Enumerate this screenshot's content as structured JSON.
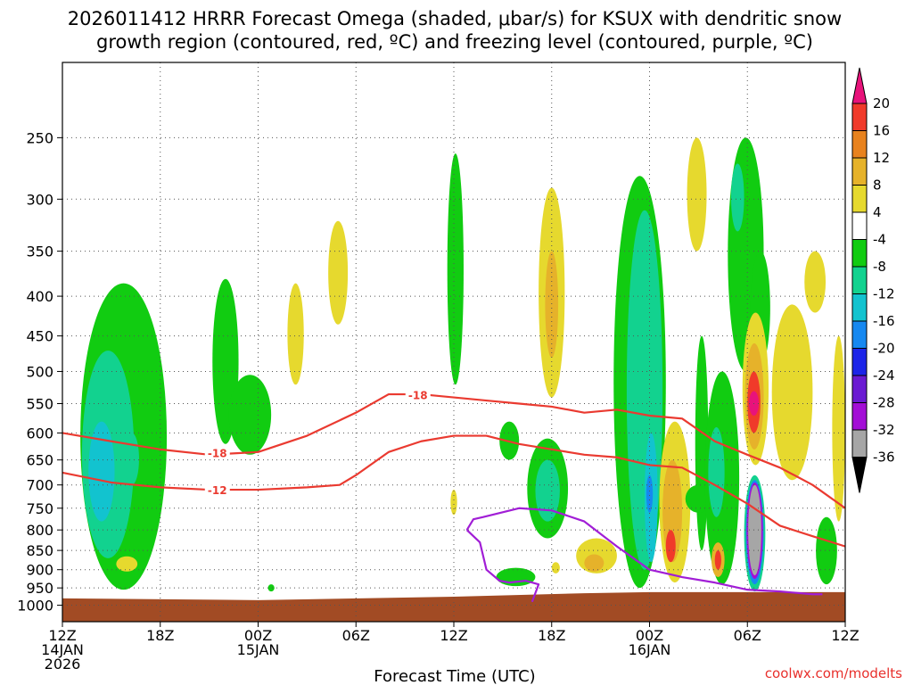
{
  "title_line1": "2026011412 HRRR Forecast Omega (shaded, μbar/s) for KSUX with dendritic snow",
  "title_line2": "growth region (contoured, red, ºC) and freezing level (contoured, purple, ºC)",
  "credit": "coolwx.com/modelts",
  "chart_data": {
    "type": "heatmap",
    "title": "2026011412 HRRR Forecast Omega (shaded, μbar/s) for KSUX with dendritic snow growth region (contoured, red, ºC) and freezing level (contoured, purple, ºC)",
    "xlabel": "Forecast Time (UTC)",
    "ylabel": "",
    "y_log_pressure": true,
    "ylim": [
      1050,
      200
    ],
    "x_hours_range": [
      0,
      48
    ],
    "grid": true,
    "x_ticks": [
      {
        "h": 0,
        "l1": "12Z",
        "l2": "14JAN",
        "l3": "2026"
      },
      {
        "h": 6,
        "l1": "18Z",
        "l2": "",
        "l3": ""
      },
      {
        "h": 12,
        "l1": "00Z",
        "l2": "15JAN",
        "l3": ""
      },
      {
        "h": 18,
        "l1": "06Z",
        "l2": "",
        "l3": ""
      },
      {
        "h": 24,
        "l1": "12Z",
        "l2": "",
        "l3": ""
      },
      {
        "h": 30,
        "l1": "18Z",
        "l2": "",
        "l3": ""
      },
      {
        "h": 36,
        "l1": "00Z",
        "l2": "16JAN",
        "l3": ""
      },
      {
        "h": 42,
        "l1": "06Z",
        "l2": "",
        "l3": ""
      },
      {
        "h": 48,
        "l1": "12Z",
        "l2": "",
        "l3": ""
      }
    ],
    "y_ticks": [
      250,
      300,
      350,
      400,
      450,
      500,
      550,
      600,
      650,
      700,
      750,
      800,
      850,
      900,
      950,
      1000
    ],
    "colorbar": [
      {
        "label": "20",
        "color": "#e8137b"
      },
      {
        "label": "16",
        "color": "#f03a2a"
      },
      {
        "label": "12",
        "color": "#e8821e"
      },
      {
        "label": "8",
        "color": "#e6b22a"
      },
      {
        "label": "4",
        "color": "#e6d92e"
      },
      {
        "label": "-4",
        "color": "#ffffff"
      },
      {
        "label": "-8",
        "color": "#11cc11"
      },
      {
        "label": "-12",
        "color": "#12d28f"
      },
      {
        "label": "-16",
        "color": "#12c3cf"
      },
      {
        "label": "-20",
        "color": "#1688f0"
      },
      {
        "label": "-24",
        "color": "#1c24e8"
      },
      {
        "label": "-28",
        "color": "#6a1ad2"
      },
      {
        "label": "-32",
        "color": "#a30ed6"
      },
      {
        "label": "-36",
        "color": "#a6a6a6"
      },
      {
        "label": "",
        "color": "#000000"
      }
    ],
    "omega_cells": [
      {
        "h0": 1.1,
        "h1": 6.4,
        "top": 385,
        "bot": 955,
        "level": -8
      },
      {
        "h0": 1.2,
        "h1": 4.4,
        "top": 470,
        "bot": 870,
        "level": -12
      },
      {
        "h0": 1.6,
        "h1": 3.2,
        "top": 580,
        "bot": 780,
        "level": -16
      },
      {
        "h0": 3.8,
        "h1": 4.7,
        "top": 600,
        "bot": 700,
        "level": -12
      },
      {
        "h0": 3.3,
        "h1": 4.6,
        "top": 865,
        "bot": 905,
        "level": 4
      },
      {
        "h0": 9.2,
        "h1": 10.8,
        "top": 380,
        "bot": 620,
        "level": -8
      },
      {
        "h0": 10.2,
        "h1": 12.8,
        "top": 505,
        "bot": 640,
        "level": -8
      },
      {
        "h0": 16.3,
        "h1": 17.5,
        "top": 320,
        "bot": 435,
        "level": 4
      },
      {
        "h0": 13.8,
        "h1": 14.8,
        "top": 385,
        "bot": 520,
        "level": 4
      },
      {
        "h0": 23.6,
        "h1": 24.6,
        "top": 262,
        "bot": 520,
        "level": -8
      },
      {
        "h0": 23.8,
        "h1": 24.2,
        "top": 710,
        "bot": 765,
        "level": 4
      },
      {
        "h0": 29.2,
        "h1": 30.8,
        "top": 290,
        "bot": 540,
        "level": 4
      },
      {
        "h0": 29.6,
        "h1": 30.4,
        "top": 350,
        "bot": 480,
        "level": 8
      },
      {
        "h0": 26.8,
        "h1": 28.0,
        "top": 580,
        "bot": 650,
        "level": -8
      },
      {
        "h0": 28.5,
        "h1": 31.0,
        "top": 610,
        "bot": 820,
        "level": -8
      },
      {
        "h0": 29.0,
        "h1": 30.5,
        "top": 650,
        "bot": 780,
        "level": -12
      },
      {
        "h0": 26.6,
        "h1": 29.0,
        "top": 895,
        "bot": 945,
        "level": -8
      },
      {
        "h0": 31.5,
        "h1": 34.0,
        "top": 820,
        "bot": 910,
        "level": 4
      },
      {
        "h0": 32.0,
        "h1": 33.2,
        "top": 860,
        "bot": 905,
        "level": 8
      },
      {
        "h0": 30.0,
        "h1": 30.5,
        "top": 880,
        "bot": 910,
        "level": 4
      },
      {
        "h0": 33.8,
        "h1": 37.0,
        "top": 280,
        "bot": 950,
        "level": -8
      },
      {
        "h0": 34.6,
        "h1": 36.8,
        "top": 310,
        "bot": 900,
        "level": -12
      },
      {
        "h0": 35.7,
        "h1": 36.5,
        "top": 600,
        "bot": 880,
        "level": -16
      },
      {
        "h0": 35.8,
        "h1": 36.2,
        "top": 680,
        "bot": 760,
        "level": -20
      },
      {
        "h0": 36.6,
        "h1": 38.5,
        "top": 580,
        "bot": 935,
        "level": 4
      },
      {
        "h0": 36.8,
        "h1": 38.0,
        "top": 650,
        "bot": 880,
        "level": 8
      },
      {
        "h0": 37.0,
        "h1": 37.6,
        "top": 800,
        "bot": 880,
        "level": 16
      },
      {
        "h0": 38.3,
        "h1": 39.5,
        "top": 250,
        "bot": 350,
        "level": 4
      },
      {
        "h0": 38.8,
        "h1": 39.6,
        "top": 450,
        "bot": 850,
        "level": -8
      },
      {
        "h0": 38.2,
        "h1": 39.8,
        "top": 700,
        "bot": 760,
        "level": -8
      },
      {
        "h0": 39.4,
        "h1": 41.5,
        "top": 500,
        "bot": 940,
        "level": -8
      },
      {
        "h0": 39.6,
        "h1": 40.6,
        "top": 590,
        "bot": 770,
        "level": -12
      },
      {
        "h0": 39.8,
        "h1": 40.6,
        "top": 830,
        "bot": 920,
        "level": 8
      },
      {
        "h0": 40.0,
        "h1": 40.4,
        "top": 850,
        "bot": 900,
        "level": 16
      },
      {
        "h0": 40.8,
        "h1": 43.0,
        "top": 250,
        "bot": 500,
        "level": -8
      },
      {
        "h0": 41.0,
        "h1": 41.8,
        "top": 270,
        "bot": 330,
        "level": -12
      },
      {
        "h0": 42.2,
        "h1": 43.4,
        "top": 350,
        "bot": 490,
        "level": -8
      },
      {
        "h0": 41.8,
        "h1": 43.1,
        "top": 680,
        "bot": 960,
        "level": -12
      },
      {
        "h0": 41.9,
        "h1": 43.0,
        "top": 690,
        "bot": 940,
        "level": -20
      },
      {
        "h0": 41.95,
        "h1": 42.95,
        "top": 695,
        "bot": 925,
        "level": -32
      },
      {
        "h0": 42.05,
        "h1": 42.85,
        "top": 700,
        "bot": 915,
        "level": -36
      },
      {
        "h0": 41.7,
        "h1": 43.3,
        "top": 420,
        "bot": 660,
        "level": 4
      },
      {
        "h0": 41.85,
        "h1": 43.0,
        "top": 460,
        "bot": 630,
        "level": 8
      },
      {
        "h0": 42.0,
        "h1": 42.8,
        "top": 500,
        "bot": 600,
        "level": 16
      },
      {
        "h0": 42.1,
        "h1": 42.7,
        "top": 530,
        "bot": 570,
        "level": 20
      },
      {
        "h0": 43.5,
        "h1": 46.0,
        "top": 410,
        "bot": 690,
        "level": 4
      },
      {
        "h0": 45.5,
        "h1": 46.8,
        "top": 350,
        "bot": 420,
        "level": 4
      },
      {
        "h0": 46.2,
        "h1": 47.5,
        "top": 770,
        "bot": 940,
        "level": -8
      },
      {
        "h0": 47.2,
        "h1": 48.0,
        "top": 450,
        "bot": 780,
        "level": 4
      },
      {
        "h0": 12.6,
        "h1": 13.0,
        "top": 940,
        "bot": 960,
        "level": -8
      }
    ],
    "series": [
      {
        "name": "-18",
        "color": "#ea3a30",
        "x": [
          0,
          3,
          6,
          9,
          12,
          15,
          18,
          20,
          22,
          24,
          26,
          28,
          30,
          32,
          34,
          36,
          38,
          40,
          42,
          44,
          46,
          48
        ],
        "y": [
          600,
          615,
          630,
          640,
          635,
          605,
          565,
          535,
          535,
          540,
          545,
          550,
          555,
          565,
          560,
          570,
          575,
          615,
          640,
          665,
          700,
          750
        ]
      },
      {
        "name": "-12",
        "color": "#ea3a30",
        "x": [
          0,
          3,
          6,
          9,
          12,
          15,
          17,
          18,
          20,
          22,
          24,
          26,
          28,
          30,
          32,
          34,
          36,
          38,
          40,
          42,
          44,
          46,
          48
        ],
        "y": [
          675,
          695,
          705,
          710,
          710,
          705,
          700,
          680,
          635,
          615,
          605,
          605,
          620,
          630,
          640,
          645,
          660,
          665,
          700,
          740,
          790,
          815,
          840
        ]
      },
      {
        "name": "0",
        "color": "#a11ed6",
        "x": [
          24.8,
          25.2,
          25.8,
          28.0,
          30.0,
          32.0,
          34.0,
          36.0,
          38.0,
          40.0,
          42.0,
          44.0,
          46.0,
          46.6
        ],
        "y": [
          800,
          775,
          770,
          750,
          755,
          780,
          840,
          900,
          920,
          935,
          955,
          960,
          968,
          968
        ]
      },
      {
        "name": "",
        "color": "#a11ed6",
        "x": [
          24.8,
          25.6,
          26.0,
          26.8,
          27.4,
          28.4,
          29.2,
          28.8
        ],
        "y": [
          800,
          830,
          900,
          930,
          935,
          930,
          940,
          990
        ]
      }
    ],
    "contour_labels": [
      {
        "text": "-18",
        "h": 21.8,
        "p": 537
      },
      {
        "text": "-18",
        "h": 9.5,
        "p": 638
      },
      {
        "text": "-12",
        "h": 9.5,
        "p": 712
      }
    ],
    "ground": {
      "color": "#a24b24",
      "x": [
        0,
        12,
        24,
        32,
        36,
        40,
        44,
        48
      ],
      "y": [
        980,
        985,
        975,
        965,
        962,
        962,
        962,
        962
      ]
    }
  }
}
